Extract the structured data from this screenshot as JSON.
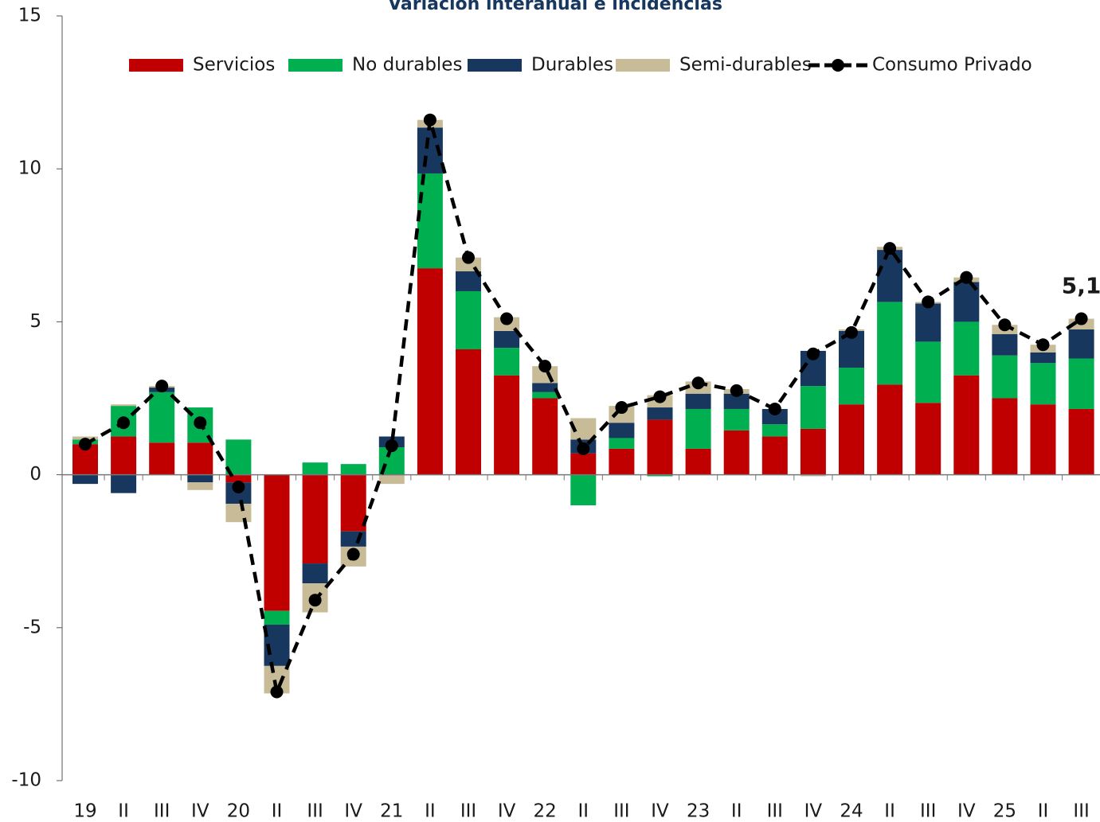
{
  "chart_data": {
    "type": "bar",
    "stacked": true,
    "title": "Variación interanual e incidencias",
    "categories": [
      "19",
      "II",
      "III",
      "IV",
      "20",
      "II",
      "III",
      "IV",
      "21",
      "II",
      "III",
      "IV",
      "22",
      "II",
      "III",
      "IV",
      "23",
      "II",
      "III",
      "IV",
      "24",
      "II",
      "III",
      "IV",
      "25",
      "II",
      "III"
    ],
    "series": [
      {
        "name": "Servicios",
        "color": "#c00000",
        "values": [
          1.0,
          1.25,
          1.05,
          1.05,
          -0.25,
          -4.45,
          -2.9,
          -1.85,
          0,
          6.75,
          4.1,
          3.25,
          2.5,
          0.7,
          0.85,
          1.8,
          0.85,
          1.45,
          1.25,
          1.5,
          2.3,
          2.95,
          2.35,
          3.25,
          2.5,
          2.3,
          2.15
        ]
      },
      {
        "name": "No durables",
        "color": "#00b050",
        "values": [
          0.15,
          1.0,
          1.65,
          1.15,
          1.15,
          -0.45,
          0.4,
          0.35,
          0.9,
          3.1,
          1.9,
          0.9,
          0.2,
          -1.0,
          0.35,
          -0.05,
          1.3,
          0.7,
          0.4,
          1.4,
          1.2,
          2.7,
          2.0,
          1.75,
          1.4,
          1.35,
          1.65
        ]
      },
      {
        "name": "Durables",
        "color": "#17375e",
        "values": [
          -0.3,
          -0.6,
          0.15,
          -0.25,
          -0.7,
          -1.35,
          -0.65,
          -0.5,
          0.35,
          1.5,
          0.65,
          0.55,
          0.3,
          0.45,
          0.5,
          0.4,
          0.5,
          0.5,
          0.5,
          1.15,
          1.2,
          1.7,
          1.25,
          1.3,
          0.7,
          0.35,
          0.95
        ]
      },
      {
        "name": "Semi-durables",
        "color": "#c8bc98",
        "values": [
          0.1,
          0.05,
          0.05,
          -0.25,
          -0.6,
          -0.9,
          -0.95,
          -0.65,
          -0.3,
          0.25,
          0.45,
          0.45,
          0.55,
          0.7,
          0.55,
          0.4,
          0.4,
          0.15,
          0.0,
          -0.05,
          0.05,
          0.1,
          0.05,
          0.15,
          0.3,
          0.25,
          0.35
        ]
      },
      {
        "name": "Consumo Privado",
        "color": "#000000",
        "type": "line",
        "dashed": true,
        "values": [
          1.0,
          1.7,
          2.9,
          1.7,
          -0.4,
          -7.1,
          -4.1,
          -2.6,
          0.95,
          11.6,
          7.1,
          5.1,
          3.55,
          0.85,
          2.2,
          2.55,
          3.0,
          2.75,
          2.15,
          3.95,
          4.65,
          7.4,
          5.65,
          6.45,
          4.9,
          4.25,
          5.1
        ],
        "value_labels": [
          null,
          null,
          null,
          null,
          null,
          null,
          null,
          null,
          null,
          null,
          null,
          null,
          null,
          null,
          null,
          null,
          null,
          null,
          null,
          null,
          null,
          null,
          null,
          null,
          null,
          null,
          "5,1"
        ]
      }
    ],
    "ylim": [
      -10,
      15
    ],
    "yticks": [
      -10,
      -5,
      0,
      5,
      10,
      15
    ],
    "legend": "top"
  }
}
